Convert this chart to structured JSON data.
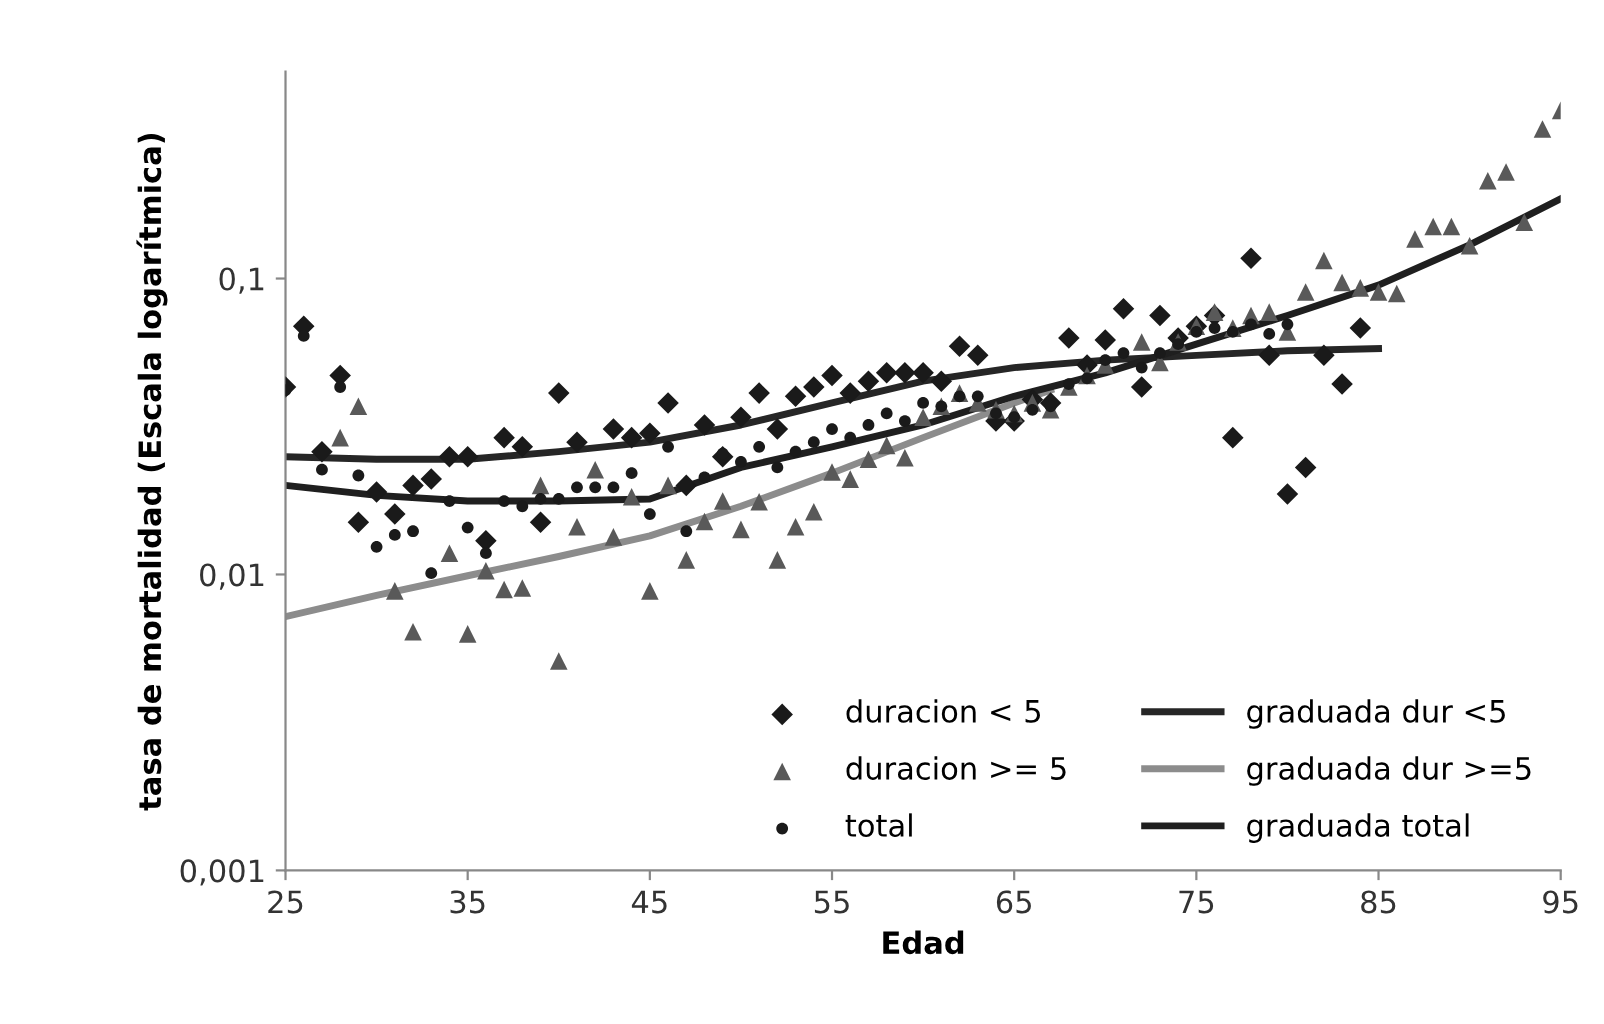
{
  "chart_data": {
    "type": "scatter",
    "xlabel": "Edad",
    "ylabel": "tasa de mortalidad (Escala logarítmica)",
    "log": "y",
    "grid": false,
    "legend": "bottom right",
    "xlim": [
      25,
      95
    ],
    "xticks": [
      25,
      35,
      45,
      55,
      65,
      75,
      85,
      95
    ],
    "ylim": [
      0.001,
      0.5
    ],
    "yticks": [
      {
        "value": 0.001,
        "label": "0,001"
      },
      {
        "value": 0.01,
        "label": "0,01"
      },
      {
        "value": 0.1,
        "label": "0,1"
      }
    ],
    "series": [
      {
        "name": "duracion < 5",
        "marker": "diamond",
        "color": "#1a1a1a",
        "x": [
          25,
          26,
          27,
          28,
          29,
          30,
          31,
          32,
          33,
          34,
          35,
          36,
          37,
          38,
          39,
          40,
          41,
          43,
          44,
          45,
          46,
          47,
          48,
          49,
          50,
          51,
          52,
          53,
          54,
          55,
          56,
          57,
          58,
          59,
          60,
          61,
          62,
          63,
          64,
          65,
          66,
          67,
          68,
          69,
          70,
          71,
          72,
          73,
          74,
          75,
          76,
          77,
          78,
          79,
          80,
          81,
          82,
          83,
          84
        ],
        "values": [
          0.043,
          0.069,
          0.026,
          0.047,
          0.015,
          0.019,
          0.016,
          0.02,
          0.021,
          0.025,
          0.025,
          0.013,
          0.029,
          0.027,
          0.015,
          0.041,
          0.028,
          0.031,
          0.029,
          0.03,
          0.038,
          0.02,
          0.032,
          0.025,
          0.034,
          0.041,
          0.031,
          0.04,
          0.043,
          0.047,
          0.041,
          0.045,
          0.048,
          0.048,
          0.048,
          0.045,
          0.059,
          0.055,
          0.033,
          0.033,
          0.039,
          0.038,
          0.063,
          0.051,
          0.062,
          0.079,
          0.043,
          0.075,
          0.063,
          0.069,
          0.075,
          0.029,
          0.117,
          0.055,
          0.0187,
          0.023,
          0.055,
          0.044,
          0.068
        ]
      },
      {
        "name": "duracion >= 5",
        "marker": "triangle",
        "color": "#595959",
        "x": [
          28,
          29,
          31,
          32,
          34,
          35,
          36,
          37,
          38,
          39,
          40,
          41,
          42,
          43,
          44,
          45,
          46,
          47,
          48,
          49,
          50,
          51,
          52,
          53,
          54,
          55,
          56,
          57,
          58,
          59,
          60,
          61,
          62,
          63,
          64,
          65,
          66,
          67,
          68,
          69,
          70,
          72,
          73,
          74,
          75,
          76,
          77,
          78,
          79,
          80,
          81,
          82,
          83,
          84,
          85,
          86,
          87,
          88,
          89,
          90,
          91,
          92,
          93,
          94,
          95
        ],
        "values": [
          0.029,
          0.037,
          0.0088,
          0.0064,
          0.0118,
          0.0063,
          0.0103,
          0.0089,
          0.009,
          0.02,
          0.0051,
          0.0145,
          0.0226,
          0.0134,
          0.0183,
          0.0088,
          0.02,
          0.0112,
          0.0151,
          0.0177,
          0.0142,
          0.0176,
          0.0112,
          0.0145,
          0.0163,
          0.0222,
          0.021,
          0.0245,
          0.0273,
          0.0248,
          0.034,
          0.037,
          0.041,
          0.038,
          0.036,
          0.035,
          0.038,
          0.036,
          0.043,
          0.047,
          0.051,
          0.061,
          0.052,
          0.061,
          0.069,
          0.077,
          0.068,
          0.075,
          0.077,
          0.066,
          0.09,
          0.115,
          0.097,
          0.093,
          0.09,
          0.089,
          0.136,
          0.15,
          0.15,
          0.129,
          0.214,
          0.229,
          0.155,
          0.32,
          0.37
        ]
      },
      {
        "name": "total",
        "marker": "circle",
        "color": "#1a1a1a",
        "x": [
          25,
          26,
          27,
          28,
          29,
          30,
          31,
          32,
          33,
          34,
          35,
          36,
          37,
          38,
          39,
          40,
          41,
          42,
          43,
          44,
          45,
          46,
          47,
          48,
          49,
          50,
          51,
          52,
          53,
          54,
          55,
          56,
          57,
          58,
          59,
          60,
          61,
          62,
          63,
          64,
          65,
          66,
          67,
          68,
          69,
          70,
          71,
          72,
          73,
          74,
          75,
          76,
          77,
          78,
          79,
          80
        ],
        "values": [
          0.042,
          0.064,
          0.0226,
          0.043,
          0.0216,
          0.0124,
          0.0136,
          0.014,
          0.0101,
          0.0177,
          0.0144,
          0.0118,
          0.0177,
          0.017,
          0.018,
          0.018,
          0.0197,
          0.0197,
          0.0197,
          0.022,
          0.016,
          0.027,
          0.014,
          0.0213,
          0.0256,
          0.024,
          0.027,
          0.023,
          0.026,
          0.028,
          0.031,
          0.029,
          0.032,
          0.035,
          0.033,
          0.038,
          0.037,
          0.04,
          0.04,
          0.035,
          0.034,
          0.036,
          0.037,
          0.044,
          0.046,
          0.053,
          0.056,
          0.05,
          0.056,
          0.06,
          0.066,
          0.068,
          0.066,
          0.07,
          0.065,
          0.07
        ]
      },
      {
        "name": "graduada dur <5",
        "type": "line",
        "color": "#262626",
        "x": [
          25,
          30,
          35,
          40,
          45,
          50,
          55,
          60,
          65,
          70,
          75,
          80,
          85
        ],
        "values": [
          0.025,
          0.0245,
          0.0245,
          0.026,
          0.028,
          0.032,
          0.038,
          0.045,
          0.05,
          0.053,
          0.055,
          0.057,
          0.058
        ]
      },
      {
        "name": "graduada dur >=5",
        "type": "line",
        "color": "#8c8c8c",
        "x": [
          25,
          30,
          35,
          40,
          45,
          50,
          55,
          60,
          65,
          67
        ],
        "values": [
          0.0072,
          0.0085,
          0.0099,
          0.0115,
          0.0135,
          0.017,
          0.022,
          0.029,
          0.038,
          0.042
        ]
      },
      {
        "name": "graduada total",
        "type": "line",
        "color": "#1f1f1f",
        "x": [
          25,
          30,
          35,
          40,
          45,
          50,
          55,
          60,
          65,
          70,
          75,
          80,
          85,
          90,
          95
        ],
        "values": [
          0.02,
          0.0185,
          0.0177,
          0.0177,
          0.018,
          0.023,
          0.027,
          0.032,
          0.04,
          0.048,
          0.06,
          0.075,
          0.095,
          0.13,
          0.186
        ]
      }
    ]
  }
}
